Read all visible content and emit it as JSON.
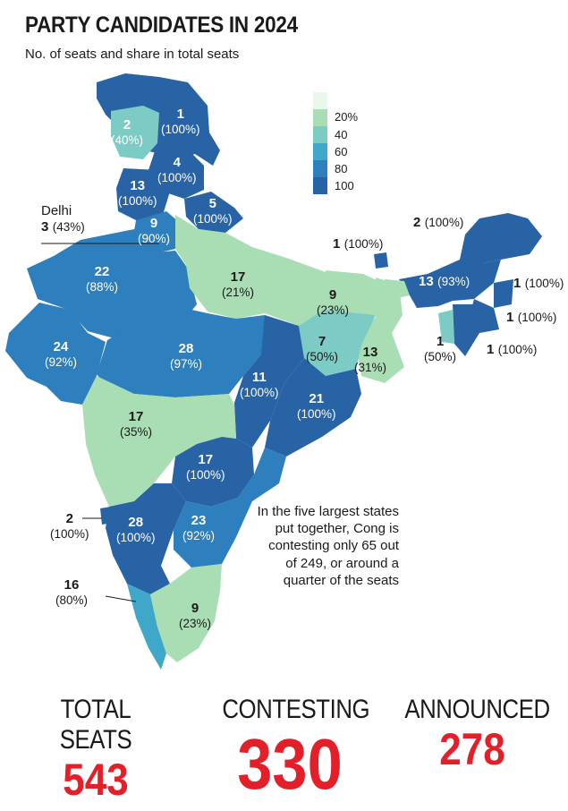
{
  "header": {
    "title": "PARTY CANDIDATES IN 2024",
    "subtitle": "No. of seats and share in total seats"
  },
  "legend": {
    "items": [
      {
        "label": "",
        "color": "#eaf7ec"
      },
      {
        "label": "20%",
        "color": "#a9deb5"
      },
      {
        "label": "40",
        "color": "#7ccbc5"
      },
      {
        "label": "60",
        "color": "#3fa8c8"
      },
      {
        "label": "80",
        "color": "#2d7fbd"
      },
      {
        "label": "100",
        "color": "#2863a6"
      }
    ]
  },
  "map": {
    "labels": [
      {
        "id": "jk",
        "seats": "1",
        "share": "(100%)"
      },
      {
        "id": "ladakh",
        "seats": "2",
        "share": "(40%)"
      },
      {
        "id": "hp",
        "seats": "4",
        "share": "(100%)"
      },
      {
        "id": "punjab",
        "seats": "13",
        "share": "(100%)"
      },
      {
        "id": "uttarakhand",
        "seats": "5",
        "share": "(100%)"
      },
      {
        "id": "haryana",
        "seats": "9",
        "share": "(90%)"
      },
      {
        "id": "delhi",
        "name": "Delhi",
        "seats": "3",
        "share": "(43%)"
      },
      {
        "id": "rajasthan",
        "seats": "22",
        "share": "(88%)"
      },
      {
        "id": "up",
        "seats": "17",
        "share": "(21%)"
      },
      {
        "id": "bihar",
        "seats": "9",
        "share": "(23%)"
      },
      {
        "id": "gujarat",
        "seats": "24",
        "share": "(92%)"
      },
      {
        "id": "mp",
        "seats": "28",
        "share": "(97%)"
      },
      {
        "id": "jharkhand",
        "seats": "7",
        "share": "(50%)"
      },
      {
        "id": "wb",
        "seats": "13",
        "share": "(31%)"
      },
      {
        "id": "chhattisgarh",
        "seats": "11",
        "share": "(100%)"
      },
      {
        "id": "odisha",
        "seats": "21",
        "share": "(100%)"
      },
      {
        "id": "maharashtra",
        "seats": "17",
        "share": "(35%)"
      },
      {
        "id": "telangana",
        "seats": "17",
        "share": "(100%)"
      },
      {
        "id": "goa",
        "seats": "2",
        "share": "(100%)"
      },
      {
        "id": "karnataka",
        "seats": "28",
        "share": "(100%)"
      },
      {
        "id": "ap",
        "seats": "23",
        "share": "(92%)"
      },
      {
        "id": "kerala",
        "seats": "16",
        "share": "(80%)"
      },
      {
        "id": "tn",
        "seats": "9",
        "share": "(23%)"
      },
      {
        "id": "sikkim",
        "seats": "1",
        "share": "(100%)"
      },
      {
        "id": "arunachal",
        "seats": "2",
        "share": "(100%)"
      },
      {
        "id": "assam",
        "seats": "13",
        "share": "(93%)"
      },
      {
        "id": "nagaland",
        "seats": "1",
        "share": "(100%)"
      },
      {
        "id": "manipur",
        "seats": "1",
        "share": "(100%)"
      },
      {
        "id": "mizoram",
        "seats": "1",
        "share": "(100%)"
      },
      {
        "id": "tripura",
        "seats": "1",
        "share": "(50%)"
      }
    ]
  },
  "note": "In the five largest states put together, Cong is contesting only 65 out of 249, or around a quarter of the seats",
  "stats": [
    {
      "label": "TOTAL SEATS",
      "value": "543"
    },
    {
      "label": "CONTESTING",
      "value": "330"
    },
    {
      "label": "ANNOUNCED",
      "value": "278"
    }
  ]
}
